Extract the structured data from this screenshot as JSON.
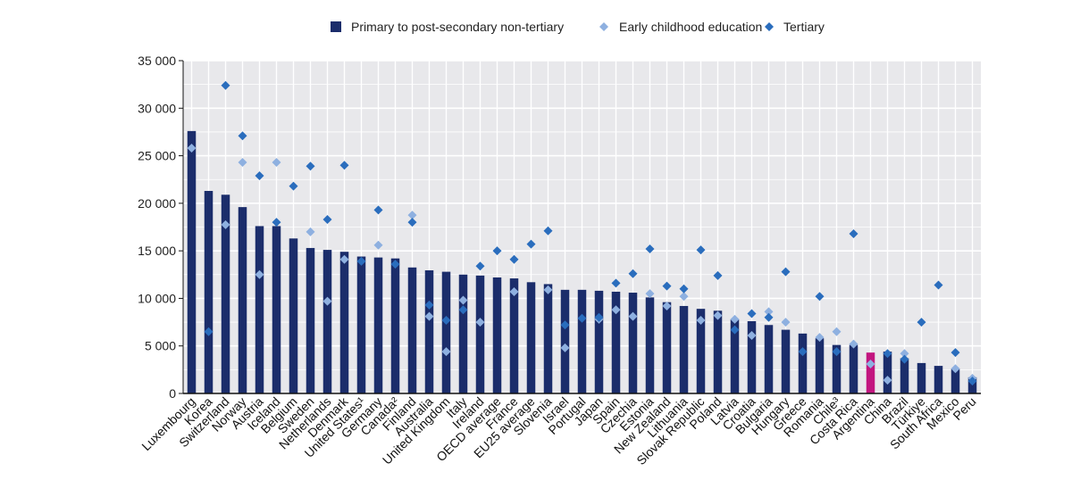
{
  "chart_data": {
    "type": "bar",
    "ylim": [
      0,
      35000
    ],
    "yticks": [
      "0",
      "5 000",
      "10 000",
      "15 000",
      "20 000",
      "25 000",
      "30 000",
      "35 000"
    ],
    "grid": true,
    "legend_position": "top",
    "categories": [
      "Luxembourg",
      "Korea",
      "Switzerland",
      "Norway",
      "Austria",
      "Iceland",
      "Belgium",
      "Sweden",
      "Netherlands",
      "Denmark",
      "United States¹",
      "Germany",
      "Canada²",
      "Finland",
      "Australia",
      "United Kingdom",
      "Italy",
      "Ireland",
      "OECD average",
      "France",
      "EU25 average",
      "Slovenia",
      "Israel",
      "Portugal",
      "Japan",
      "Spain",
      "Czechia",
      "Estonia",
      "New Zealand",
      "Lithuania",
      "Slovak Republic",
      "Poland",
      "Latvia",
      "Croatia",
      "Bulgaria",
      "Hungary",
      "Greece",
      "Romania",
      "Chile³",
      "Costa Rica",
      "Argentina",
      "China",
      "Brazil",
      "Türkiye",
      "South Africa",
      "Mexico",
      "Peru"
    ],
    "highlight_category": "Argentina",
    "series": [
      {
        "name": "Primary to post-secondary non-tertiary",
        "type": "bar",
        "color": "#1b2d6b",
        "highlight_color": "#c2157f",
        "values": [
          27600,
          21300,
          20900,
          19600,
          17600,
          17600,
          16300,
          15300,
          15100,
          14900,
          14400,
          14300,
          14200,
          13250,
          12950,
          12800,
          12500,
          12400,
          12200,
          12100,
          11700,
          11500,
          10900,
          10900,
          10800,
          10700,
          10600,
          10100,
          9600,
          9200,
          8900,
          8700,
          7800,
          7600,
          7200,
          6700,
          6300,
          5800,
          5100,
          5100,
          4300,
          4400,
          3700,
          3200,
          2900,
          2600,
          1700
        ]
      },
      {
        "name": "Early childhood education",
        "type": "scatter",
        "marker": "diamond",
        "color": "#8eb0e0",
        "values": [
          25800,
          null,
          17750,
          24300,
          12500,
          24300,
          null,
          17000,
          9700,
          14100,
          null,
          15600,
          null,
          18750,
          8100,
          4400,
          9800,
          7500,
          null,
          10700,
          null,
          10900,
          4800,
          null,
          7800,
          8800,
          8100,
          10500,
          9200,
          10200,
          7700,
          8200,
          7800,
          6100,
          8600,
          7500,
          null,
          5900,
          6500,
          5200,
          3100,
          1400,
          4200,
          null,
          null,
          2600,
          1600
        ]
      },
      {
        "name": "Tertiary",
        "type": "scatter",
        "marker": "diamond",
        "color": "#2a6dbd",
        "values": [
          null,
          6500,
          32400,
          27100,
          22900,
          18000,
          21800,
          23900,
          18300,
          24000,
          13900,
          19300,
          13600,
          18000,
          9300,
          7700,
          8800,
          13400,
          15000,
          14100,
          15700,
          17100,
          7200,
          7900,
          8000,
          11600,
          12600,
          15200,
          11300,
          11000,
          15100,
          12400,
          6700,
          8400,
          8000,
          12800,
          4400,
          10200,
          4400,
          16800,
          null,
          4200,
          3600,
          7500,
          11400,
          4300,
          1300
        ]
      }
    ]
  }
}
